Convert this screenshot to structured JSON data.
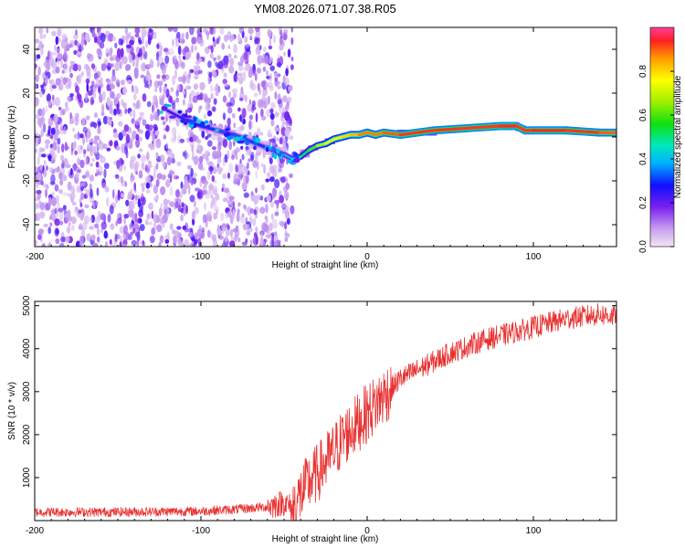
{
  "figure": {
    "title": "YM08.2026.071.07.38.R05"
  },
  "chart_data": [
    {
      "type": "heatmap",
      "title": "YM08.2026.071.07.38.R05",
      "xlabel": "Height of straight line (km)",
      "ylabel": "Frequency (Hz)",
      "xlim": [
        -200,
        150
      ],
      "ylim": [
        -50,
        50
      ],
      "xticks": [
        -200,
        -100,
        0,
        100
      ],
      "yticks": [
        -40,
        -20,
        0,
        20,
        40
      ],
      "colorbar": {
        "label": "Normalized spectral amplitude",
        "range": [
          0,
          1
        ],
        "ticks": [
          0,
          0.2,
          0.4,
          0.6,
          0.8
        ]
      },
      "ridge": {
        "x": [
          -120,
          -110,
          -100,
          -90,
          -80,
          -70,
          -60,
          -50,
          -45,
          -40,
          -35,
          -30,
          -25,
          -20,
          -15,
          -10,
          -5,
          0,
          5,
          10,
          20,
          40,
          60,
          80,
          90,
          95,
          100,
          120,
          140,
          150
        ],
        "y": [
          12,
          8,
          5,
          3,
          1,
          -2,
          -5,
          -8,
          -10,
          -9,
          -6,
          -4,
          -3,
          -1,
          0,
          1,
          1,
          2,
          1,
          2,
          1,
          3,
          4,
          5,
          5,
          3,
          3,
          3,
          2,
          2
        ],
        "amplitude": [
          0.2,
          0.3,
          0.3,
          0.3,
          0.35,
          0.3,
          0.3,
          0.4,
          0.4,
          0.5,
          0.55,
          0.65,
          0.7,
          0.75,
          0.8,
          0.8,
          0.85,
          0.9,
          0.85,
          0.9,
          0.9,
          0.95,
          0.9,
          0.95,
          0.95,
          0.9,
          0.95,
          0.95,
          0.9,
          0.9
        ]
      },
      "noise_region_x": [
        -200,
        -45
      ]
    },
    {
      "type": "line",
      "xlabel": "Height of straight line (km)",
      "ylabel": "SNR (10 * v/v)",
      "xlim": [
        -200,
        150
      ],
      "ylim": [
        0,
        5100
      ],
      "xticks": [
        -200,
        -100,
        0,
        100
      ],
      "yticks": [
        1000,
        2000,
        3000,
        4000,
        5000
      ],
      "color": "#e83232",
      "series": [
        {
          "name": "SNR",
          "x": [
            -200,
            -150,
            -100,
            -80,
            -60,
            -50,
            -45,
            -40,
            -35,
            -30,
            -20,
            -15,
            -10,
            -5,
            0,
            5,
            10,
            15,
            20,
            30,
            40,
            50,
            60,
            70,
            80,
            90,
            100,
            110,
            120,
            130,
            140,
            150
          ],
          "y": [
            200,
            200,
            220,
            260,
            320,
            420,
            280,
            600,
            900,
            1100,
            1600,
            1900,
            2100,
            2300,
            2500,
            2700,
            2900,
            3100,
            3300,
            3500,
            3700,
            3900,
            4050,
            4200,
            4300,
            4400,
            4500,
            4600,
            4700,
            4750,
            4800,
            4750
          ]
        }
      ]
    }
  ]
}
